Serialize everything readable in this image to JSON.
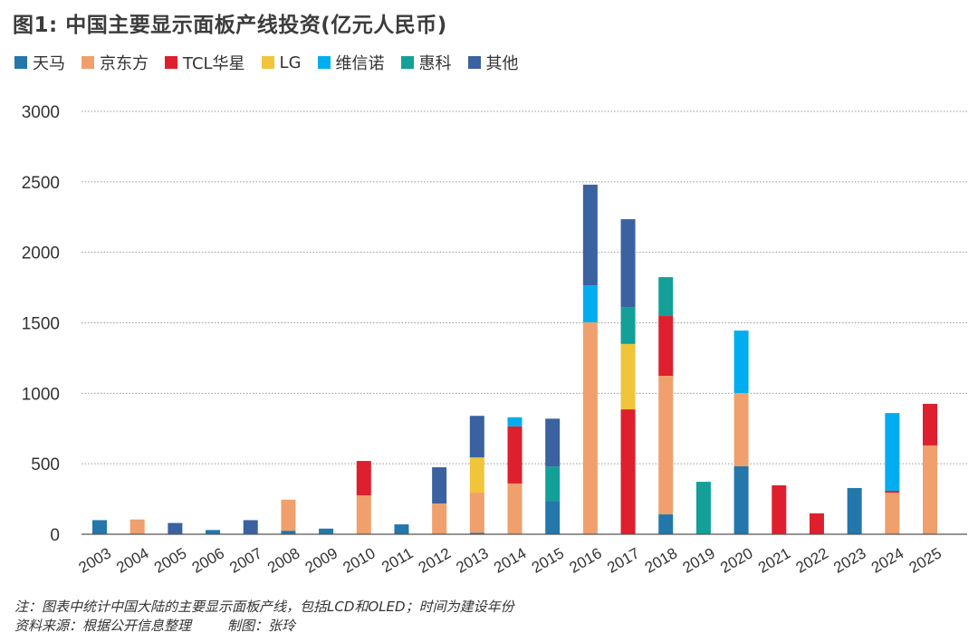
{
  "chart_data": {
    "type": "bar",
    "stacked": true,
    "title": "图1: 中国主要显示面板产线投资(亿元人民币)",
    "xlabel": "",
    "ylabel": "",
    "ylim": [
      0,
      3000
    ],
    "yticks": [
      "0",
      "500",
      "1000",
      "1500",
      "2000",
      "2500",
      "3000"
    ],
    "grid": true,
    "legend_position": "top-left",
    "categories": [
      "2003",
      "2004",
      "2005",
      "2006",
      "2007",
      "2008",
      "2009",
      "2010",
      "2011",
      "2012",
      "2013",
      "2014",
      "2015",
      "2016",
      "2017",
      "2018",
      "2019",
      "2020",
      "2021",
      "2022",
      "2023",
      "2024",
      "2025"
    ],
    "series": [
      {
        "name": "天马",
        "color": "#2377ab",
        "values": [
          100,
          0,
          0,
          30,
          0,
          25,
          40,
          0,
          70,
          0,
          10,
          0,
          237,
          0,
          0,
          141,
          0,
          482,
          0,
          0,
          328,
          0,
          0
        ]
      },
      {
        "name": "京东方",
        "color": "#efa06c",
        "values": [
          0,
          105,
          0,
          0,
          0,
          220,
          0,
          276,
          0,
          218,
          285,
          360,
          0,
          1503,
          0,
          983,
          0,
          520,
          0,
          0,
          0,
          295,
          630
        ]
      },
      {
        "name": "TCL华星",
        "color": "#de1f2e",
        "values": [
          0,
          0,
          0,
          0,
          0,
          0,
          0,
          244,
          0,
          0,
          0,
          405,
          0,
          0,
          886,
          424,
          0,
          0,
          347,
          148,
          0,
          13,
          295
        ]
      },
      {
        "name": "LG",
        "color": "#f0c53a",
        "values": [
          0,
          0,
          0,
          0,
          0,
          0,
          0,
          0,
          0,
          0,
          250,
          0,
          0,
          0,
          464,
          0,
          0,
          0,
          0,
          0,
          0,
          0,
          0
        ]
      },
      {
        "name": "维信诺",
        "color": "#00aeef",
        "values": [
          0,
          0,
          0,
          0,
          0,
          0,
          0,
          0,
          0,
          0,
          0,
          65,
          0,
          263,
          0,
          0,
          0,
          443,
          0,
          0,
          0,
          552,
          0
        ]
      },
      {
        "name": "惠科",
        "color": "#12a098",
        "values": [
          0,
          0,
          0,
          0,
          0,
          0,
          0,
          0,
          0,
          0,
          0,
          0,
          243,
          0,
          262,
          276,
          372,
          0,
          0,
          0,
          0,
          0,
          0
        ]
      },
      {
        "name": "其他",
        "color": "#3a62a0",
        "values": [
          0,
          0,
          80,
          0,
          100,
          0,
          0,
          0,
          0,
          257,
          295,
          0,
          340,
          714,
          623,
          0,
          0,
          0,
          0,
          0,
          0,
          0,
          0
        ]
      }
    ]
  },
  "notes": {
    "line1": "注：图表中统计中国大陆的主要显示面板产线，包括LCD和OLED；时间为建设年份",
    "source": "资料来源：根据公开信息整理",
    "author": "制图：张玲"
  }
}
